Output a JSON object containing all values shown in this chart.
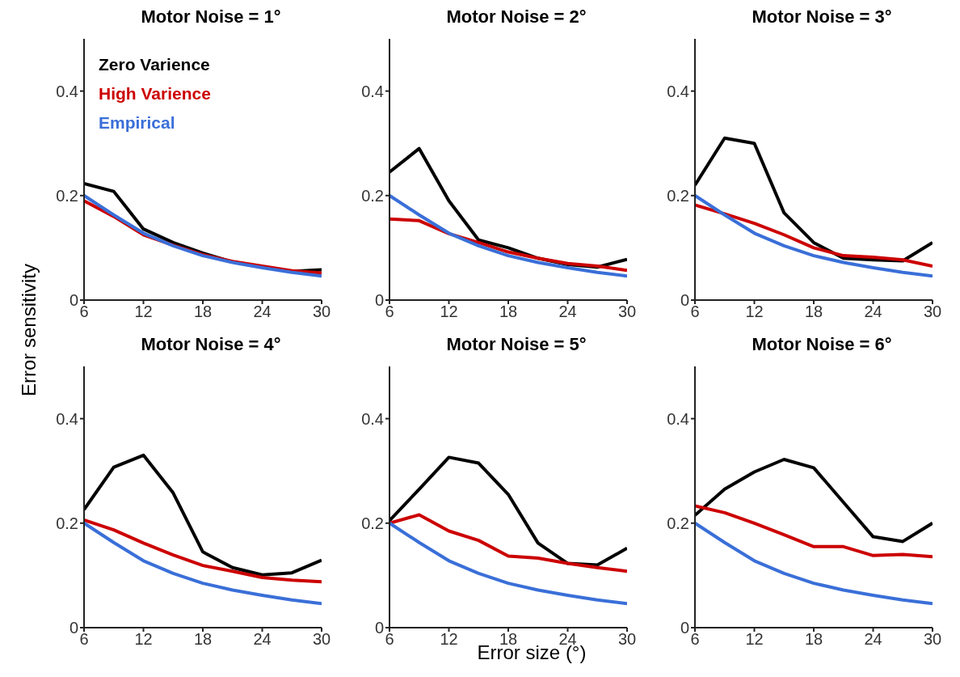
{
  "chart_data": [
    {
      "type": "line",
      "title": "Motor Noise = 1°",
      "ylabel": "Error sensitivity",
      "x": [
        6,
        9,
        12,
        15,
        18,
        21,
        24,
        27,
        30
      ],
      "xlim": [
        6,
        30
      ],
      "xticks": [
        6,
        12,
        18,
        24,
        30
      ],
      "ylim": [
        0,
        0.5
      ],
      "yticks": [
        0,
        0.2,
        0.4
      ],
      "grid": false,
      "legend": "top left",
      "marker": "none",
      "line_style": "solid",
      "series": [
        {
          "name": "Zero Varience",
          "color": "#000000",
          "values": [
            0.223,
            0.208,
            0.136,
            0.11,
            0.09,
            0.073,
            0.063,
            0.055,
            0.058
          ]
        },
        {
          "name": "High Varience",
          "color": "#cc0000",
          "values": [
            0.19,
            0.16,
            0.125,
            0.105,
            0.087,
            0.074,
            0.065,
            0.056,
            0.052
          ]
        },
        {
          "name": "Empirical",
          "color": "#3a6fd8",
          "values": [
            0.2,
            0.163,
            0.128,
            0.104,
            0.085,
            0.072,
            0.062,
            0.053,
            0.046
          ]
        }
      ]
    },
    {
      "type": "line",
      "title": "Motor Noise = 2°",
      "x": [
        6,
        9,
        12,
        15,
        18,
        21,
        24,
        27,
        30
      ],
      "xlim": [
        6,
        30
      ],
      "xticks": [
        6,
        12,
        18,
        24,
        30
      ],
      "ylim": [
        0,
        0.5
      ],
      "yticks": [
        0,
        0.2,
        0.4
      ],
      "grid": false,
      "marker": "none",
      "line_style": "solid",
      "series": [
        {
          "color": "#000000",
          "values": [
            0.245,
            0.29,
            0.19,
            0.115,
            0.1,
            0.08,
            0.068,
            0.063,
            0.078
          ]
        },
        {
          "color": "#cc0000",
          "values": [
            0.155,
            0.152,
            0.127,
            0.11,
            0.092,
            0.08,
            0.07,
            0.065,
            0.057
          ]
        },
        {
          "color": "#3a6fd8",
          "values": [
            0.2,
            0.163,
            0.128,
            0.104,
            0.085,
            0.072,
            0.062,
            0.053,
            0.046
          ]
        }
      ]
    },
    {
      "type": "line",
      "title": "Motor Noise = 3°",
      "x": [
        6,
        9,
        12,
        15,
        18,
        21,
        24,
        27,
        30
      ],
      "xlim": [
        6,
        30
      ],
      "xticks": [
        6,
        12,
        18,
        24,
        30
      ],
      "ylim": [
        0,
        0.5
      ],
      "yticks": [
        0,
        0.2,
        0.4
      ],
      "grid": false,
      "marker": "none",
      "line_style": "solid",
      "series": [
        {
          "color": "#000000",
          "values": [
            0.22,
            0.31,
            0.3,
            0.167,
            0.11,
            0.08,
            0.077,
            0.075,
            0.11
          ]
        },
        {
          "color": "#cc0000",
          "values": [
            0.182,
            0.165,
            0.147,
            0.125,
            0.1,
            0.085,
            0.082,
            0.077,
            0.065
          ]
        },
        {
          "color": "#3a6fd8",
          "values": [
            0.2,
            0.163,
            0.128,
            0.104,
            0.085,
            0.072,
            0.062,
            0.053,
            0.046
          ]
        }
      ]
    },
    {
      "type": "line",
      "title": "Motor Noise = 4°",
      "x": [
        6,
        9,
        12,
        15,
        18,
        21,
        24,
        27,
        30
      ],
      "xlim": [
        6,
        30
      ],
      "xticks": [
        6,
        12,
        18,
        24,
        30
      ],
      "ylim": [
        0,
        0.5
      ],
      "yticks": [
        0,
        0.2,
        0.4
      ],
      "grid": false,
      "marker": "none",
      "line_style": "solid",
      "series": [
        {
          "color": "#000000",
          "values": [
            0.226,
            0.307,
            0.33,
            0.258,
            0.145,
            0.115,
            0.101,
            0.105,
            0.129
          ]
        },
        {
          "color": "#cc0000",
          "values": [
            0.206,
            0.187,
            0.162,
            0.139,
            0.119,
            0.108,
            0.096,
            0.091,
            0.088
          ]
        },
        {
          "color": "#3a6fd8",
          "values": [
            0.2,
            0.163,
            0.128,
            0.104,
            0.085,
            0.072,
            0.062,
            0.053,
            0.046
          ]
        }
      ]
    },
    {
      "type": "line",
      "title": "Motor Noise = 5°",
      "xlabel": "Error size (°)",
      "x": [
        6,
        9,
        12,
        15,
        18,
        21,
        24,
        27,
        30
      ],
      "xlim": [
        6,
        30
      ],
      "xticks": [
        6,
        12,
        18,
        24,
        30
      ],
      "ylim": [
        0,
        0.5
      ],
      "yticks": [
        0,
        0.2,
        0.4
      ],
      "grid": false,
      "marker": "none",
      "line_style": "solid",
      "series": [
        {
          "color": "#000000",
          "values": [
            0.205,
            0.265,
            0.326,
            0.315,
            0.255,
            0.162,
            0.123,
            0.12,
            0.152
          ]
        },
        {
          "color": "#cc0000",
          "values": [
            0.2,
            0.216,
            0.185,
            0.167,
            0.137,
            0.133,
            0.123,
            0.115,
            0.108
          ]
        },
        {
          "color": "#3a6fd8",
          "values": [
            0.2,
            0.163,
            0.128,
            0.104,
            0.085,
            0.072,
            0.062,
            0.053,
            0.046
          ]
        }
      ]
    },
    {
      "type": "line",
      "title": "Motor Noise = 6°",
      "x": [
        6,
        9,
        12,
        15,
        18,
        21,
        24,
        27,
        30
      ],
      "xlim": [
        6,
        30
      ],
      "xticks": [
        6,
        12,
        18,
        24,
        30
      ],
      "ylim": [
        0,
        0.5
      ],
      "yticks": [
        0,
        0.2,
        0.4
      ],
      "grid": false,
      "marker": "none",
      "line_style": "solid",
      "series": [
        {
          "color": "#000000",
          "values": [
            0.215,
            0.265,
            0.298,
            0.322,
            0.306,
            0.24,
            0.174,
            0.165,
            0.2
          ]
        },
        {
          "color": "#cc0000",
          "values": [
            0.233,
            0.22,
            0.2,
            0.178,
            0.155,
            0.155,
            0.138,
            0.14,
            0.136
          ]
        },
        {
          "color": "#3a6fd8",
          "values": [
            0.2,
            0.163,
            0.128,
            0.104,
            0.085,
            0.072,
            0.062,
            0.053,
            0.046
          ]
        }
      ]
    }
  ]
}
